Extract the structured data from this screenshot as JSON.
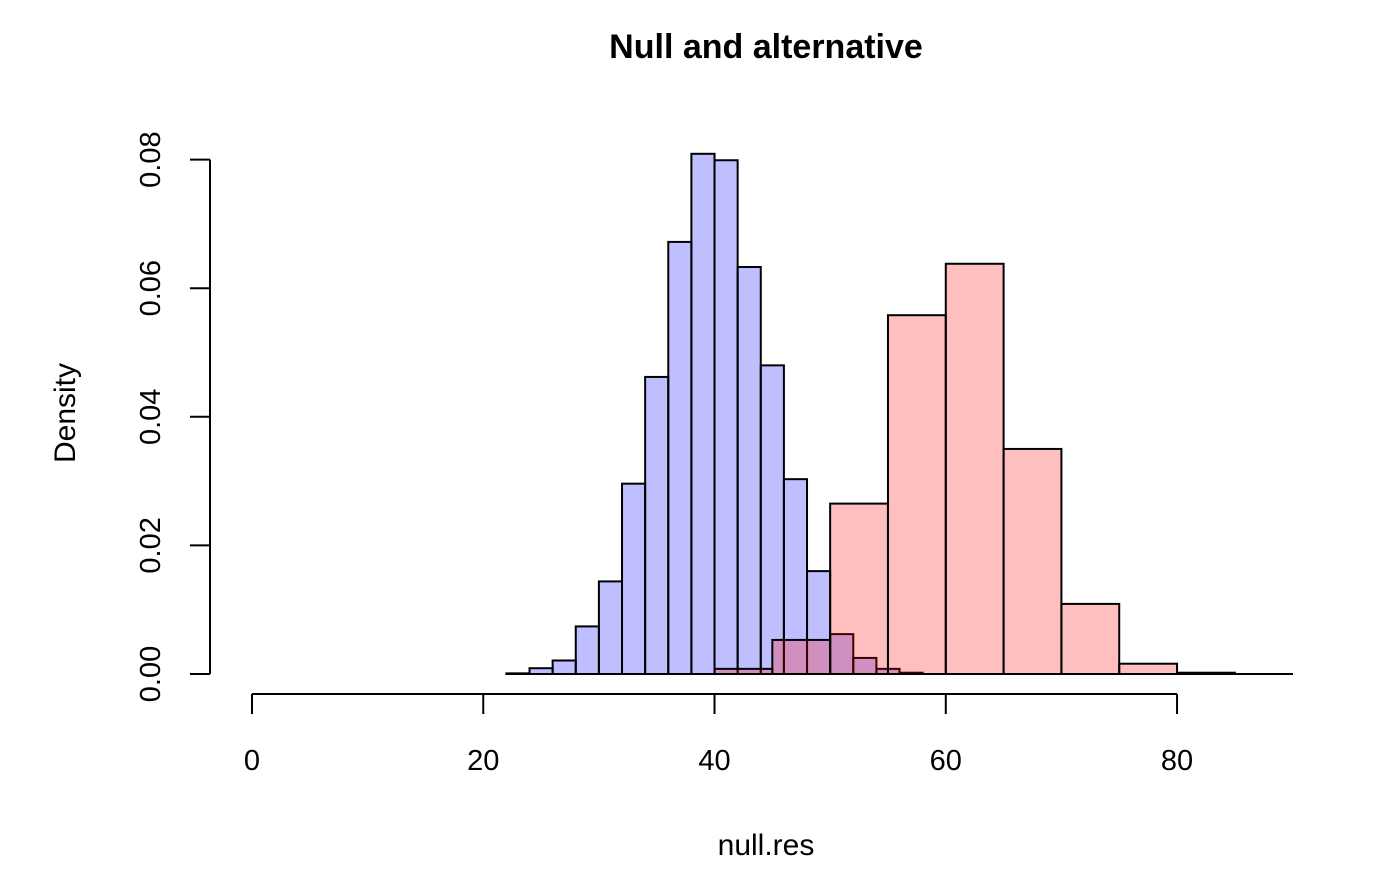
{
  "chart_data": {
    "type": "histogram",
    "title": "Null and alternative",
    "xlabel": "null.res",
    "ylabel": "Density",
    "xlim": [
      0,
      90
    ],
    "ylim": [
      0,
      0.08
    ],
    "x_ticks": [
      0,
      20,
      40,
      60,
      80
    ],
    "y_ticks": [
      "0.00",
      "0.02",
      "0.04",
      "0.06",
      "0.08"
    ],
    "grid": false,
    "legend": "none",
    "series": [
      {
        "color": "#bfbfff",
        "bin_edges": [
          22,
          24,
          26,
          28,
          30,
          32,
          34,
          36,
          38,
          40,
          42,
          44,
          46,
          48,
          50,
          52,
          54,
          56,
          58
        ],
        "density": [
          0.0001,
          0.0009,
          0.0021,
          0.0074,
          0.0144,
          0.0296,
          0.0462,
          0.0672,
          0.0809,
          0.0799,
          0.0633,
          0.048,
          0.0303,
          0.016,
          0.0062,
          0.0025,
          0.0008,
          0.0002
        ]
      },
      {
        "color": "#ffbfbf",
        "bin_edges": [
          40,
          45,
          50,
          55,
          60,
          65,
          70,
          75,
          80,
          85
        ],
        "density": [
          0.0008,
          0.0053,
          0.0265,
          0.0558,
          0.0638,
          0.035,
          0.0109,
          0.0016,
          0.0002
        ]
      }
    ]
  }
}
